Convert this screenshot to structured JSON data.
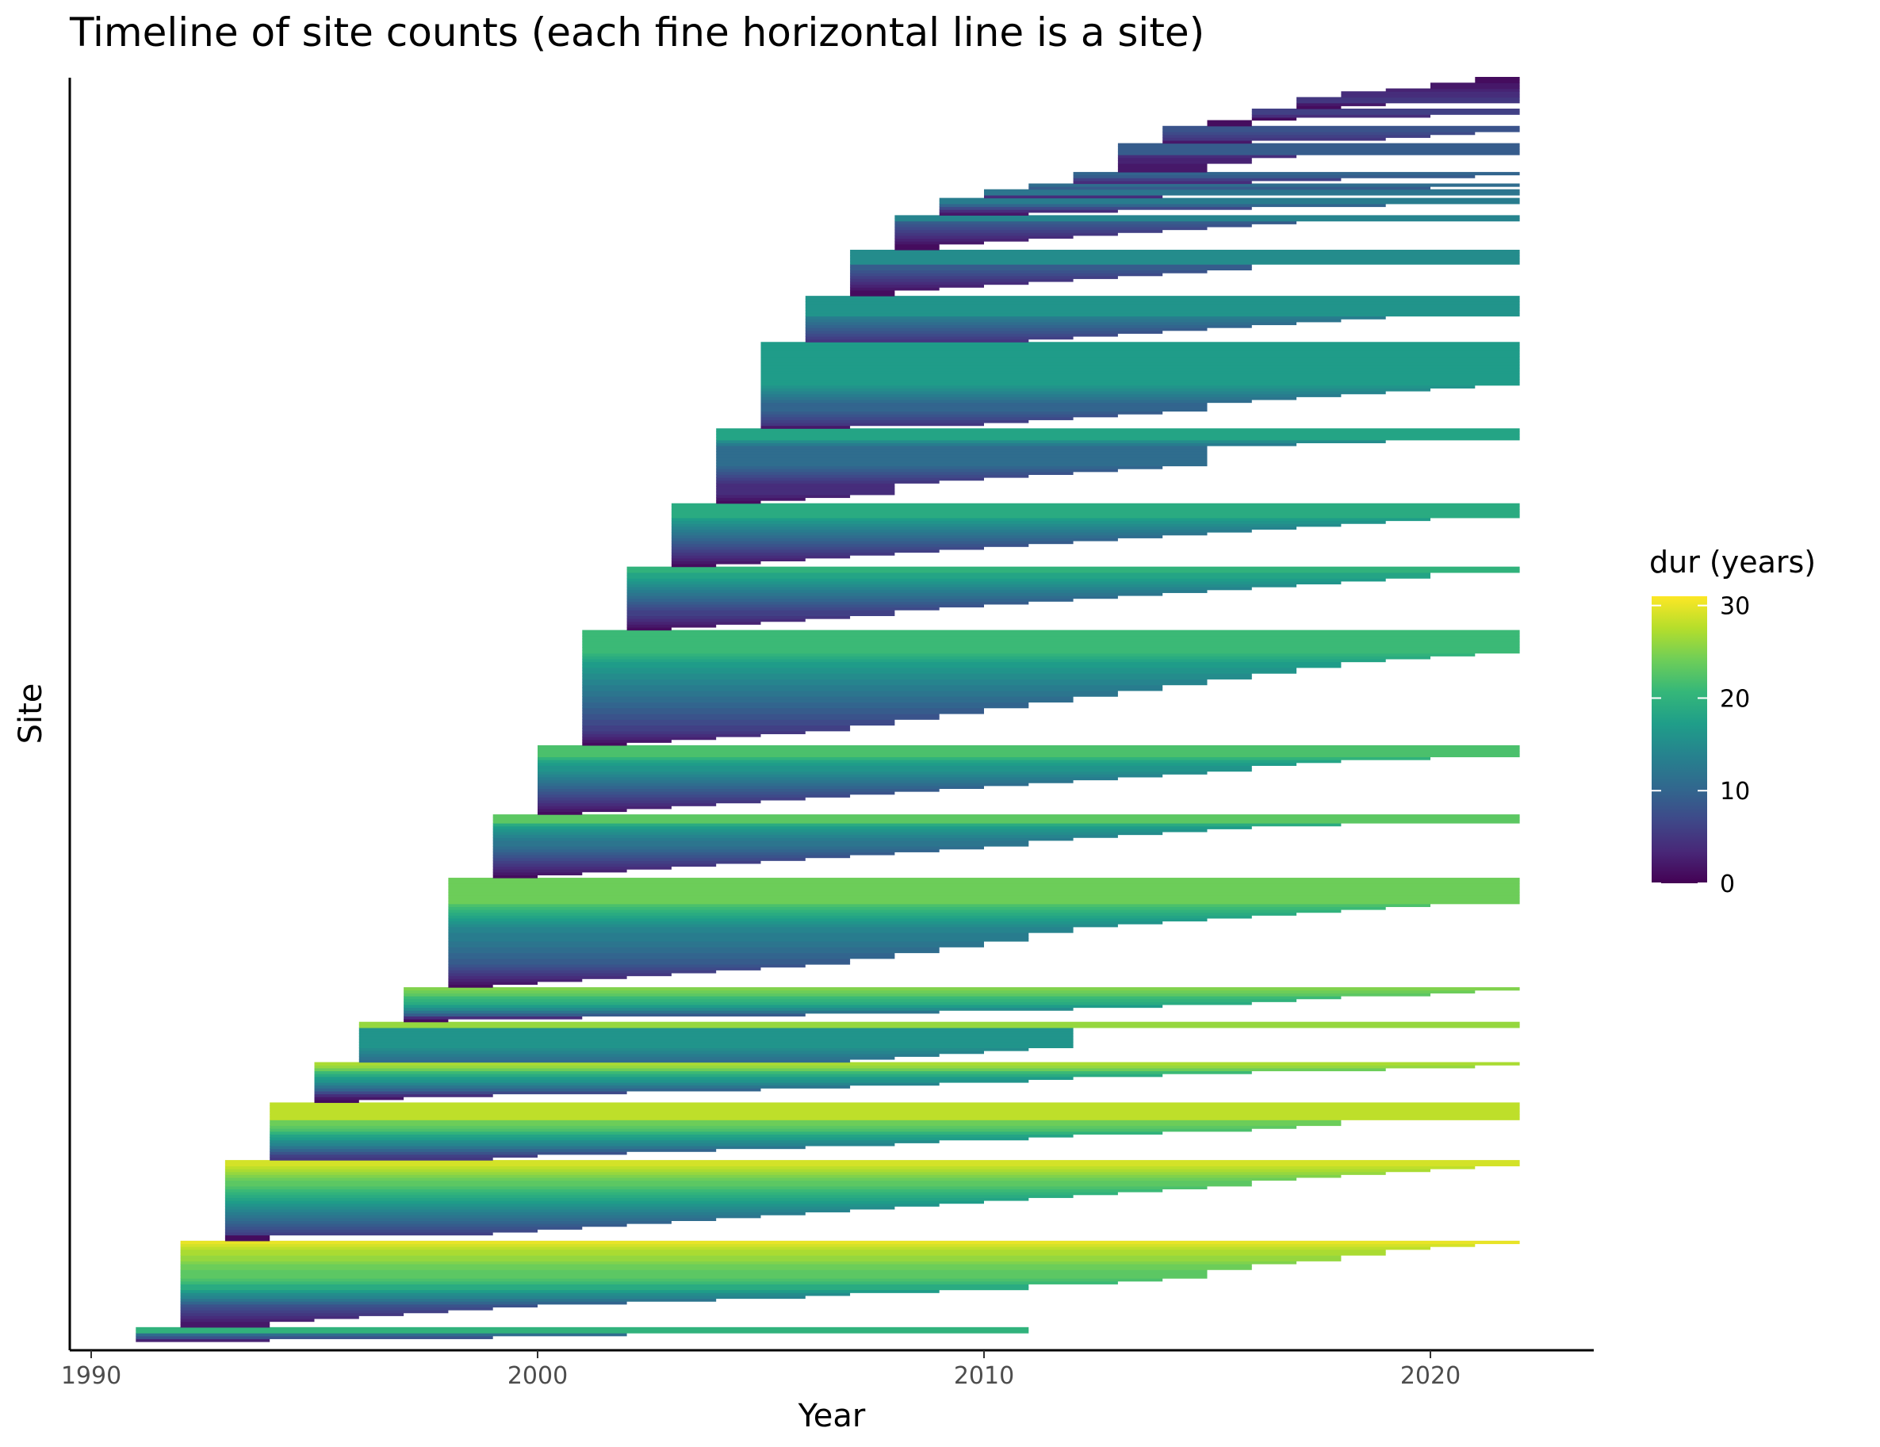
{
  "chart_data": {
    "type": "timeline",
    "title": "Timeline of site counts (each fine horizontal line is a site)",
    "xlabel": "Year",
    "ylabel": "Site",
    "xlim": [
      1990,
      2023
    ],
    "x_ticks": [
      1990,
      2000,
      2010,
      2020
    ],
    "x_tick_labels": [
      "1990",
      "2000",
      "2010",
      "2020"
    ],
    "y_ticks_shown": false,
    "grid": false,
    "legend": {
      "title": "dur (years)",
      "position": "right",
      "type": "colorbar",
      "scale": "viridis",
      "range": [
        0,
        31
      ],
      "ticks": [
        0,
        10,
        20,
        30
      ],
      "tick_labels": [
        "0",
        "10",
        "20",
        "30"
      ]
    },
    "colormap": [
      "#440154",
      "#482878",
      "#3e4989",
      "#31688e",
      "#26828e",
      "#1f9e89",
      "#35b779",
      "#6ece58",
      "#b5de2b",
      "#fde725"
    ],
    "series_note_sites": "Each site runs from its start year to its end year, colored by duration; sites grouped into cohorts by start year.",
    "cohorts": [
      {
        "start": 1991,
        "n": 5,
        "ends": [
          1994,
          1999,
          2002,
          2011,
          2011
        ]
      },
      {
        "start": 1992,
        "n": 30,
        "ends": [
          1994,
          1994,
          1995,
          1996,
          1997,
          1998,
          1999,
          2000,
          2002,
          2004,
          2006,
          2007,
          2009,
          2011,
          2011,
          2013,
          2014,
          2015,
          2015,
          2015,
          2016,
          2016,
          2017,
          2018,
          2018,
          2019,
          2019,
          2020,
          2021,
          2022
        ]
      },
      {
        "start": 1993,
        "n": 28,
        "ends": [
          1994,
          1994,
          1999,
          2000,
          2001,
          2002,
          2003,
          2004,
          2005,
          2006,
          2007,
          2008,
          2009,
          2010,
          2011,
          2012,
          2013,
          2014,
          2015,
          2016,
          2016,
          2017,
          2018,
          2019,
          2020,
          2021,
          2022,
          2022
        ]
      },
      {
        "start": 1994,
        "n": 20,
        "ends": [
          1999,
          2000,
          2002,
          2004,
          2006,
          2008,
          2009,
          2011,
          2012,
          2014,
          2016,
          2017,
          2018,
          2018,
          2022,
          2022,
          2022,
          2022,
          2022,
          2022
        ]
      },
      {
        "start": 1995,
        "n": 14,
        "ends": [
          1996,
          1997,
          1999,
          2002,
          2005,
          2007,
          2009,
          2011,
          2012,
          2014,
          2016,
          2019,
          2021,
          2022
        ]
      },
      {
        "start": 1996,
        "n": 14,
        "ends": [
          2007,
          2008,
          2009,
          2010,
          2011,
          2012,
          2012,
          2012,
          2012,
          2012,
          2012,
          2012,
          2022,
          2022
        ]
      },
      {
        "start": 1997,
        "n": 12,
        "ends": [
          1998,
          2001,
          2006,
          2009,
          2012,
          2014,
          2016,
          2017,
          2018,
          2020,
          2021,
          2022
        ]
      },
      {
        "start": 1998,
        "n": 38,
        "ends": [
          1999,
          2000,
          2001,
          2002,
          2003,
          2004,
          2005,
          2006,
          2007,
          2007,
          2008,
          2008,
          2009,
          2009,
          2010,
          2010,
          2011,
          2011,
          2011,
          2012,
          2012,
          2013,
          2014,
          2015,
          2016,
          2017,
          2018,
          2019,
          2020,
          2022,
          2022,
          2022,
          2022,
          2022,
          2022,
          2022,
          2022,
          2022
        ]
      },
      {
        "start": 1999,
        "n": 22,
        "ends": [
          2000,
          2001,
          2002,
          2003,
          2004,
          2005,
          2006,
          2007,
          2008,
          2009,
          2010,
          2011,
          2011,
          2012,
          2013,
          2014,
          2015,
          2016,
          2018,
          2022,
          2022,
          2022
        ]
      },
      {
        "start": 2000,
        "n": 24,
        "ends": [
          2001,
          2002,
          2003,
          2004,
          2005,
          2006,
          2007,
          2008,
          2009,
          2010,
          2011,
          2012,
          2013,
          2014,
          2015,
          2016,
          2016,
          2017,
          2018,
          2020,
          2022,
          2022,
          2022,
          2022
        ]
      },
      {
        "start": 2001,
        "n": 40,
        "ends": [
          2002,
          2003,
          2004,
          2005,
          2006,
          2007,
          2007,
          2008,
          2008,
          2009,
          2009,
          2010,
          2010,
          2011,
          2011,
          2012,
          2012,
          2013,
          2013,
          2014,
          2014,
          2015,
          2015,
          2016,
          2016,
          2017,
          2017,
          2018,
          2018,
          2019,
          2020,
          2021,
          2022,
          2022,
          2022,
          2022,
          2022,
          2022,
          2022,
          2022
        ]
      },
      {
        "start": 2002,
        "n": 22,
        "ends": [
          2003,
          2004,
          2005,
          2006,
          2007,
          2008,
          2008,
          2009,
          2010,
          2011,
          2012,
          2013,
          2014,
          2015,
          2016,
          2017,
          2018,
          2019,
          2020,
          2020,
          2022,
          2022
        ]
      },
      {
        "start": 2003,
        "n": 22,
        "ends": [
          2004,
          2005,
          2006,
          2007,
          2008,
          2009,
          2010,
          2011,
          2012,
          2013,
          2014,
          2015,
          2016,
          2017,
          2018,
          2019,
          2020,
          2022,
          2022,
          2022,
          2022,
          2022
        ]
      },
      {
        "start": 2004,
        "n": 26,
        "ends": [
          2005,
          2006,
          2007,
          2008,
          2008,
          2008,
          2008,
          2009,
          2010,
          2011,
          2012,
          2013,
          2014,
          2015,
          2015,
          2015,
          2015,
          2015,
          2015,
          2015,
          2017,
          2019,
          2022,
          2022,
          2022,
          2022
        ]
      },
      {
        "start": 2005,
        "n": 30,
        "ends": [
          2007,
          2010,
          2011,
          2012,
          2013,
          2014,
          2015,
          2015,
          2015,
          2016,
          2017,
          2018,
          2019,
          2020,
          2021,
          2022,
          2022,
          2022,
          2022,
          2022,
          2022,
          2022,
          2022,
          2022,
          2022,
          2022,
          2022,
          2022,
          2022,
          2022
        ]
      },
      {
        "start": 2006,
        "n": 16,
        "ends": [
          2011,
          2012,
          2013,
          2014,
          2015,
          2016,
          2017,
          2018,
          2019,
          2022,
          2022,
          2022,
          2022,
          2022,
          2022,
          2022
        ]
      },
      {
        "start": 2007,
        "n": 16,
        "ends": [
          2008,
          2008,
          2009,
          2010,
          2011,
          2012,
          2013,
          2014,
          2015,
          2016,
          2016,
          2022,
          2022,
          2022,
          2022,
          2022
        ]
      },
      {
        "start": 2008,
        "n": 12,
        "ends": [
          2009,
          2009,
          2010,
          2011,
          2012,
          2013,
          2014,
          2015,
          2016,
          2017,
          2022,
          2022
        ]
      },
      {
        "start": 2009,
        "n": 6,
        "ends": [
          2011,
          2013,
          2016,
          2019,
          2022,
          2022
        ]
      },
      {
        "start": 2010,
        "n": 3,
        "ends": [
          2014,
          2022,
          2022
        ]
      },
      {
        "start": 2011,
        "n": 2,
        "ends": [
          2020,
          2022
        ]
      },
      {
        "start": 2012,
        "n": 4,
        "ends": [
          2016,
          2018,
          2021,
          2022
        ]
      },
      {
        "start": 2013,
        "n": 10,
        "ends": [
          2015,
          2015,
          2015,
          2016,
          2016,
          2017,
          2022,
          2022,
          2022,
          2022
        ]
      },
      {
        "start": 2014,
        "n": 6,
        "ends": [
          2016,
          2019,
          2020,
          2021,
          2022,
          2022
        ]
      },
      {
        "start": 2015,
        "n": 2,
        "ends": [
          2016,
          2016
        ]
      },
      {
        "start": 2016,
        "n": 4,
        "ends": [
          2017,
          2020,
          2022,
          2022
        ]
      },
      {
        "start": 2017,
        "n": 4,
        "ends": [
          2018,
          2019,
          2022,
          2022
        ]
      },
      {
        "start": 2018,
        "n": 2,
        "ends": [
          2022,
          2022
        ]
      },
      {
        "start": 2019,
        "n": 1,
        "ends": [
          2022
        ]
      },
      {
        "start": 2020,
        "n": 2,
        "ends": [
          2022,
          2022
        ]
      },
      {
        "start": 2021,
        "n": 2,
        "ends": [
          2022,
          2022
        ]
      }
    ]
  }
}
